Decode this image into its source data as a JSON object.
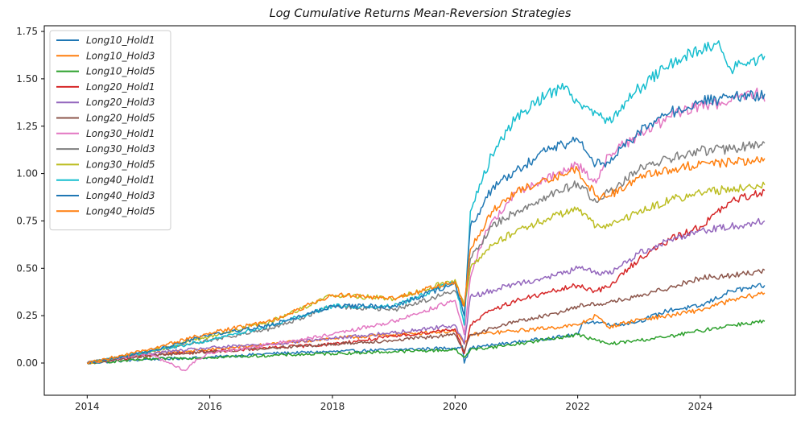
{
  "chart_data": {
    "type": "line",
    "title": "Log Cumulative Returns Mean-Reversion Strategies",
    "xlabel": "",
    "ylabel": "",
    "xlim": [
      2013.3,
      2025.55
    ],
    "ylim": [
      -0.17,
      1.78
    ],
    "xticks": [
      2014,
      2016,
      2018,
      2020,
      2022,
      2024
    ],
    "yticks": [
      0.0,
      0.25,
      0.5,
      0.75,
      1.0,
      1.25,
      1.5,
      1.75
    ],
    "ytick_labels": [
      "0.00",
      "0.25",
      "0.50",
      "0.75",
      "1.00",
      "1.25",
      "1.50",
      "1.75"
    ],
    "grid": false,
    "legend_position": "top-left",
    "series": [
      {
        "name": "Long10_Hold1",
        "color": "#1f77b4",
        "x": [
          2014.0,
          2015.0,
          2016.0,
          2017.0,
          2018.0,
          2019.0,
          2020.0,
          2020.12,
          2020.15,
          2020.25,
          2020.5,
          2021.0,
          2021.5,
          2022.0,
          2022.1,
          2022.5,
          2022.6,
          2023.0,
          2023.5,
          2024.0,
          2024.5,
          2024.9,
          2025.05
        ],
        "values": [
          0.0,
          0.02,
          0.03,
          0.05,
          0.06,
          0.07,
          0.08,
          0.09,
          0.0,
          0.08,
          0.09,
          0.11,
          0.13,
          0.15,
          0.22,
          0.21,
          0.2,
          0.22,
          0.28,
          0.3,
          0.38,
          0.4,
          0.41
        ]
      },
      {
        "name": "Long10_Hold3",
        "color": "#ff7f0e",
        "x": [
          2014.0,
          2015.0,
          2016.0,
          2017.0,
          2018.0,
          2019.0,
          2019.5,
          2020.0,
          2020.15,
          2020.25,
          2021.0,
          2022.0,
          2022.3,
          2022.5,
          2023.0,
          2023.5,
          2024.0,
          2024.5,
          2025.05
        ],
        "values": [
          0.0,
          0.05,
          0.07,
          0.1,
          0.13,
          0.15,
          0.16,
          0.17,
          0.1,
          0.15,
          0.17,
          0.2,
          0.25,
          0.19,
          0.23,
          0.25,
          0.28,
          0.33,
          0.37
        ]
      },
      {
        "name": "Long10_Hold5",
        "color": "#2ca02c",
        "x": [
          2014.0,
          2015.0,
          2016.0,
          2017.0,
          2018.0,
          2019.0,
          2020.0,
          2020.15,
          2020.25,
          2021.0,
          2022.0,
          2022.3,
          2022.5,
          2023.0,
          2023.5,
          2024.0,
          2024.5,
          2025.05
        ],
        "values": [
          0.0,
          0.02,
          0.03,
          0.04,
          0.05,
          0.06,
          0.07,
          0.03,
          0.07,
          0.1,
          0.15,
          0.12,
          0.1,
          0.12,
          0.14,
          0.17,
          0.2,
          0.22
        ]
      },
      {
        "name": "Long20_Hold1",
        "color": "#d62728",
        "x": [
          2014.0,
          2015.0,
          2016.0,
          2017.0,
          2018.0,
          2018.5,
          2019.0,
          2019.5,
          2020.0,
          2020.15,
          2020.25,
          2020.6,
          2021.0,
          2021.5,
          2022.0,
          2022.3,
          2022.5,
          2023.0,
          2023.5,
          2024.0,
          2024.5,
          2025.05
        ],
        "values": [
          0.0,
          0.04,
          0.06,
          0.08,
          0.1,
          0.12,
          0.14,
          0.16,
          0.18,
          0.05,
          0.2,
          0.28,
          0.33,
          0.37,
          0.41,
          0.38,
          0.4,
          0.55,
          0.65,
          0.72,
          0.85,
          0.91
        ]
      },
      {
        "name": "Long20_Hold3",
        "color": "#9467bd",
        "x": [
          2014.0,
          2015.0,
          2016.0,
          2017.0,
          2018.0,
          2019.0,
          2020.0,
          2020.15,
          2020.25,
          2021.0,
          2021.5,
          2022.0,
          2022.5,
          2023.0,
          2023.5,
          2024.0,
          2024.5,
          2025.05
        ],
        "values": [
          0.0,
          0.05,
          0.08,
          0.1,
          0.13,
          0.16,
          0.2,
          0.1,
          0.35,
          0.42,
          0.45,
          0.5,
          0.47,
          0.58,
          0.65,
          0.7,
          0.72,
          0.75
        ]
      },
      {
        "name": "Long20_Hold5",
        "color": "#8c564b",
        "x": [
          2014.0,
          2015.0,
          2016.0,
          2017.0,
          2018.0,
          2019.0,
          2020.0,
          2020.15,
          2020.25,
          2021.0,
          2021.5,
          2022.0,
          2022.5,
          2023.0,
          2023.5,
          2024.0,
          2024.5,
          2025.05
        ],
        "values": [
          0.0,
          0.04,
          0.06,
          0.08,
          0.1,
          0.12,
          0.15,
          0.06,
          0.15,
          0.22,
          0.25,
          0.3,
          0.32,
          0.35,
          0.4,
          0.45,
          0.46,
          0.49
        ]
      },
      {
        "name": "Long30_Hold1",
        "color": "#e377c2",
        "x": [
          2014.0,
          2015.0,
          2015.6,
          2015.8,
          2016.0,
          2017.0,
          2018.0,
          2019.0,
          2020.0,
          2020.15,
          2020.25,
          2020.5,
          2021.0,
          2021.5,
          2022.0,
          2022.3,
          2022.5,
          2023.0,
          2023.5,
          2024.0,
          2024.5,
          2024.9,
          2025.05
        ],
        "values": [
          0.0,
          0.05,
          -0.04,
          0.02,
          0.05,
          0.1,
          0.15,
          0.22,
          0.33,
          0.15,
          0.45,
          0.7,
          0.9,
          0.97,
          1.05,
          0.95,
          1.1,
          1.2,
          1.3,
          1.36,
          1.38,
          1.43,
          1.38
        ]
      },
      {
        "name": "Long30_Hold3",
        "color": "#7f7f7f",
        "x": [
          2014.0,
          2015.0,
          2016.0,
          2017.0,
          2018.0,
          2019.0,
          2020.0,
          2020.15,
          2020.25,
          2020.6,
          2021.0,
          2021.5,
          2022.0,
          2022.3,
          2022.5,
          2023.0,
          2023.5,
          2024.0,
          2024.5,
          2025.05
        ],
        "values": [
          0.0,
          0.06,
          0.12,
          0.18,
          0.3,
          0.28,
          0.38,
          0.3,
          0.55,
          0.72,
          0.8,
          0.88,
          0.95,
          0.85,
          0.9,
          1.02,
          1.08,
          1.12,
          1.13,
          1.16
        ]
      },
      {
        "name": "Long30_Hold5",
        "color": "#bcbd22",
        "x": [
          2014.0,
          2015.0,
          2016.0,
          2017.0,
          2018.0,
          2019.0,
          2020.0,
          2020.15,
          2020.25,
          2020.6,
          2021.0,
          2021.5,
          2022.0,
          2022.3,
          2022.5,
          2023.0,
          2023.5,
          2024.0,
          2024.5,
          2025.05
        ],
        "values": [
          0.0,
          0.06,
          0.14,
          0.22,
          0.36,
          0.34,
          0.44,
          0.3,
          0.5,
          0.62,
          0.7,
          0.76,
          0.82,
          0.72,
          0.72,
          0.8,
          0.86,
          0.9,
          0.92,
          0.94
        ]
      },
      {
        "name": "Long40_Hold1",
        "color": "#17becf",
        "x": [
          2014.0,
          2015.0,
          2016.0,
          2017.0,
          2018.0,
          2019.0,
          2020.0,
          2020.15,
          2020.25,
          2020.6,
          2021.0,
          2021.5,
          2021.8,
          2022.0,
          2022.3,
          2022.5,
          2023.0,
          2023.5,
          2024.0,
          2024.3,
          2024.5,
          2025.05
        ],
        "values": [
          0.0,
          0.06,
          0.12,
          0.2,
          0.3,
          0.3,
          0.43,
          0.2,
          0.8,
          1.1,
          1.3,
          1.42,
          1.46,
          1.38,
          1.32,
          1.28,
          1.45,
          1.58,
          1.65,
          1.7,
          1.55,
          1.62
        ]
      },
      {
        "name": "Long40_Hold3",
        "color": "#1f77b4",
        "x": [
          2014.0,
          2015.0,
          2016.0,
          2017.0,
          2018.0,
          2019.0,
          2020.0,
          2020.15,
          2020.25,
          2020.6,
          2021.0,
          2021.5,
          2022.0,
          2022.3,
          2022.5,
          2023.0,
          2023.5,
          2024.0,
          2024.5,
          2025.05
        ],
        "values": [
          0.0,
          0.06,
          0.15,
          0.2,
          0.3,
          0.3,
          0.42,
          0.25,
          0.72,
          0.92,
          1.02,
          1.12,
          1.18,
          1.05,
          1.06,
          1.22,
          1.32,
          1.38,
          1.4,
          1.42
        ]
      },
      {
        "name": "Long40_Hold5",
        "color": "#ff7f0e",
        "x": [
          2014.0,
          2015.0,
          2016.0,
          2017.0,
          2018.0,
          2019.0,
          2020.0,
          2020.15,
          2020.25,
          2020.6,
          2021.0,
          2021.5,
          2022.0,
          2022.3,
          2022.5,
          2023.0,
          2023.5,
          2024.0,
          2024.5,
          2025.05
        ],
        "values": [
          0.0,
          0.07,
          0.16,
          0.22,
          0.36,
          0.34,
          0.43,
          0.3,
          0.6,
          0.8,
          0.9,
          0.97,
          1.02,
          0.88,
          0.88,
          0.98,
          1.02,
          1.05,
          1.06,
          1.08
        ]
      }
    ]
  }
}
